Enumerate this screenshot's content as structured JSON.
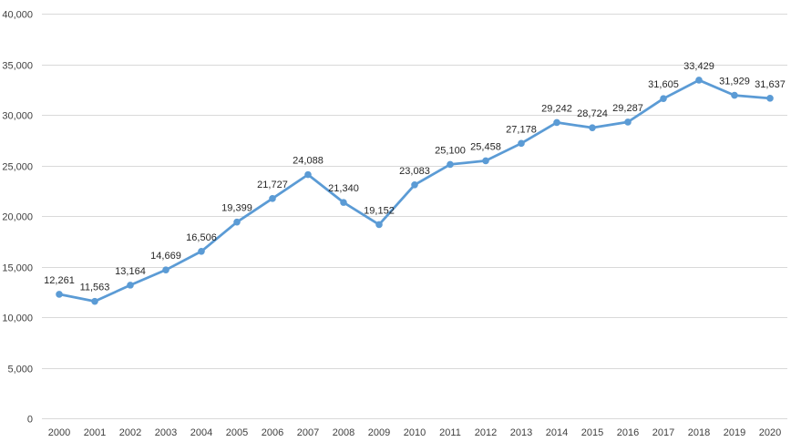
{
  "chart_data": {
    "type": "line",
    "title": "",
    "xlabel": "",
    "ylabel": "",
    "ylim": [
      0,
      40000
    ],
    "y_ticks": [
      0,
      5000,
      10000,
      15000,
      20000,
      25000,
      30000,
      35000,
      40000
    ],
    "y_tick_labels": [
      "0",
      "5,000",
      "10,000",
      "15,000",
      "20,000",
      "25,000",
      "30,000",
      "35,000",
      "40,000"
    ],
    "grid": true,
    "legend": "none",
    "categories": [
      "2000",
      "2001",
      "2002",
      "2003",
      "2004",
      "2005",
      "2006",
      "2007",
      "2008",
      "2009",
      "2010",
      "2011",
      "2012",
      "2013",
      "2014",
      "2015",
      "2016",
      "2017",
      "2018",
      "2019",
      "2020"
    ],
    "series": [
      {
        "name": "Series 1",
        "color": "#5b9bd5",
        "values": [
          12261,
          11563,
          13164,
          14669,
          16506,
          19399,
          21727,
          24088,
          21340,
          19152,
          23083,
          25100,
          25458,
          27178,
          29242,
          28724,
          29287,
          31605,
          33429,
          31929,
          31637
        ],
        "labels": [
          "12,261",
          "11,563",
          "13,164",
          "14,669",
          "16,506",
          "19,399",
          "21,727",
          "24,088",
          "21,340",
          "19,152",
          "23,083",
          "25,100",
          "25,458",
          "27,178",
          "29,242",
          "28,724",
          "29,287",
          "31,605",
          "33,429",
          "31,929",
          "31,637"
        ]
      }
    ]
  }
}
